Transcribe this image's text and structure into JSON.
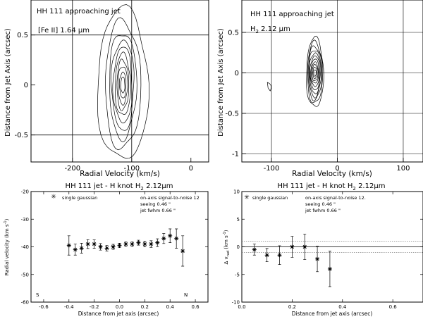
{
  "panels": {
    "a": {
      "title": "HH 111   approaching jet",
      "line_label": "[Fe II] 1.64 μm",
      "xlabel": "Radial Velocity (km/s)",
      "ylabel": "Distance from Jet Axis (arcsec)"
    },
    "b": {
      "title": "HH 111   approaching jet",
      "line_label_main": "H",
      "line_label_sub": "2",
      "line_label_rest": " 2.12 μm",
      "xlabel": "Radial Velocity (km/s)",
      "ylabel": "Distance from Jet Axis (arcsec)"
    },
    "c": {
      "title_main": "HH 111 jet - H knot  H",
      "title_sub": "2",
      "title_rest": " 2.12μm",
      "legend": "single gaussian",
      "note1": "on-axis signal-to-noise  12",
      "note2": "seeing  0.46 \"",
      "note3": "jet fwhm  0.66 \"",
      "corner_left": "S",
      "corner_right": "N",
      "ylabel_main": "Radial velocity (km s",
      "ylabel_sup": "-1",
      "ylabel_end": ")",
      "xlabel": "Distance from jet axis (arcsec)"
    },
    "d": {
      "title_main": "HH 111 jet - H knot  H",
      "title_sub": "2",
      "title_rest": " 2.12μm",
      "legend": "single gaussian",
      "note1": "on-axis signal-to-noise  12.",
      "note2": "seeing  0.46 \"",
      "note3": "jet fwhm  0.66 \"",
      "ylabel_main": "Δ v",
      "ylabel_sub": "rad",
      "ylabel_unit": "(km s",
      "ylabel_sup": "-1",
      "ylabel_end": ")",
      "xlabel": "Distance from jet axis (arcsec)"
    }
  },
  "chart_data": [
    {
      "type": "contour",
      "title": "HH 111 approaching jet [Fe II] 1.64 μm",
      "xlabel": "Radial Velocity (km/s)",
      "ylabel": "Distance from Jet Axis (arcsec)",
      "xlim": [
        -270,
        30
      ],
      "ylim": [
        -0.77,
        0.85
      ],
      "x_ticks": [
        -200,
        -100,
        0
      ],
      "x_tick_labels": [
        "-200",
        "-100",
        "0"
      ],
      "y_ticks": [
        0.5,
        0,
        -0.5
      ],
      "y_tick_labels": [
        "0.5",
        "0",
        "-0.5"
      ],
      "grid_x": [
        -200,
        -100
      ],
      "grid_y": [
        0.5,
        -0.5
      ],
      "peak": {
        "x": -115,
        "y": 0
      },
      "contour_levels": 10,
      "contours": [
        {
          "rx": 43,
          "ry": 0.76
        },
        {
          "rx": 30,
          "ry": 0.64
        },
        {
          "rx": 23,
          "ry": 0.53
        },
        {
          "rx": 19,
          "ry": 0.45
        },
        {
          "rx": 16,
          "ry": 0.38
        },
        {
          "rx": 13,
          "ry": 0.31
        },
        {
          "rx": 10,
          "ry": 0.25
        },
        {
          "rx": 8,
          "ry": 0.19
        },
        {
          "rx": 5.5,
          "ry": 0.13
        },
        {
          "rx": 3.5,
          "ry": 0.08
        }
      ]
    },
    {
      "type": "contour",
      "title": "HH 111 approaching jet H2 2.12 μm",
      "xlabel": "Radial Velocity (km/s)",
      "ylabel": "Distance from Jet Axis (arcsec)",
      "xlim": [
        -145,
        130
      ],
      "ylim": [
        -1.1,
        0.9
      ],
      "x_ticks": [
        -100,
        0,
        100
      ],
      "x_tick_labels": [
        "-100",
        "0",
        "100"
      ],
      "y_ticks": [
        0.5,
        0,
        -0.5,
        -1
      ],
      "y_tick_labels": [
        "0.5",
        "0",
        "-0.5",
        "-1"
      ],
      "grid_x": [
        -100,
        0,
        100
      ],
      "grid_y": [
        0.5,
        0,
        -0.5,
        -1
      ],
      "peak": {
        "x": -34,
        "y": 0
      },
      "contour_levels": 11,
      "contours": [
        {
          "rx": 13,
          "ry": 0.43
        },
        {
          "rx": 11.5,
          "ry": 0.38
        },
        {
          "rx": 10.5,
          "ry": 0.33
        },
        {
          "rx": 9.5,
          "ry": 0.29
        },
        {
          "rx": 8.5,
          "ry": 0.25
        },
        {
          "rx": 7.5,
          "ry": 0.21
        },
        {
          "rx": 6.5,
          "ry": 0.17
        },
        {
          "rx": 5.5,
          "ry": 0.13
        },
        {
          "rx": 4.5,
          "ry": 0.1
        },
        {
          "rx": 3.2,
          "ry": 0.07
        },
        {
          "rx": 2,
          "ry": 0.04
        }
      ],
      "extra_feature": {
        "x": -103,
        "y": -0.17
      }
    },
    {
      "type": "scatter",
      "title": "HH 111 jet - H knot H2 2.12μm",
      "xlabel": "Distance from jet axis (arcsec)",
      "ylabel": "Radial velocity (km s-1)",
      "xlim": [
        -0.7,
        0.7
      ],
      "ylim": [
        -60,
        -20
      ],
      "x_ticks": [
        -0.6,
        -0.4,
        -0.2,
        0.0,
        0.2,
        0.4,
        0.6
      ],
      "x_tick_labels": [
        "-0.6",
        "-0.4",
        "-0.2",
        "0.0",
        "0.2",
        "0.4",
        "0.6"
      ],
      "y_ticks": [
        -20,
        -30,
        -40,
        -50,
        -60
      ],
      "y_tick_labels": [
        "-20",
        "-30",
        "-40",
        "-50",
        "-60"
      ],
      "series": [
        {
          "name": "single gaussian",
          "x": [
            -0.4,
            -0.35,
            -0.3,
            -0.25,
            -0.2,
            -0.15,
            -0.1,
            -0.05,
            0.0,
            0.05,
            0.1,
            0.15,
            0.2,
            0.25,
            0.3,
            0.35,
            0.4,
            0.45,
            0.5
          ],
          "y": [
            -39.5,
            -41,
            -40.5,
            -39,
            -39,
            -40,
            -40.5,
            -40,
            -39.5,
            -39,
            -39,
            -38.5,
            -39,
            -39,
            -38.5,
            -37,
            -36,
            -37,
            -41.5
          ],
          "yerr": [
            3.5,
            2.0,
            1.8,
            1.6,
            1.5,
            1.2,
            1.0,
            0.9,
            0.8,
            0.8,
            0.8,
            0.9,
            1.0,
            1.2,
            1.4,
            1.8,
            2.5,
            3.5,
            5.5
          ]
        }
      ]
    },
    {
      "type": "scatter",
      "title": "HH 111 jet - H knot H2 2.12μm",
      "xlabel": "Distance from jet axis (arcsec)",
      "ylabel": "Δ v_rad (km s-1)",
      "xlim": [
        0.0,
        0.72
      ],
      "ylim": [
        -10,
        10
      ],
      "x_ticks": [
        0.0,
        0.2,
        0.4,
        0.6
      ],
      "x_tick_labels": [
        "0.0",
        "0.2",
        "0.4",
        "0.6"
      ],
      "y_ticks": [
        10,
        5,
        0,
        -5,
        -10
      ],
      "y_tick_labels": [
        "10",
        "5",
        "0",
        "-5",
        "-10"
      ],
      "reference_lines": [
        -1,
        1
      ],
      "series": [
        {
          "name": "single gaussian",
          "x": [
            0.05,
            0.1,
            0.15,
            0.2,
            0.25,
            0.3,
            0.35
          ],
          "y": [
            -0.5,
            -1.5,
            -1.5,
            0.0,
            0.0,
            -2.2,
            -4.0
          ],
          "yerr": [
            1.0,
            1.2,
            1.7,
            1.9,
            2.3,
            2.3,
            3.2
          ]
        }
      ]
    }
  ]
}
